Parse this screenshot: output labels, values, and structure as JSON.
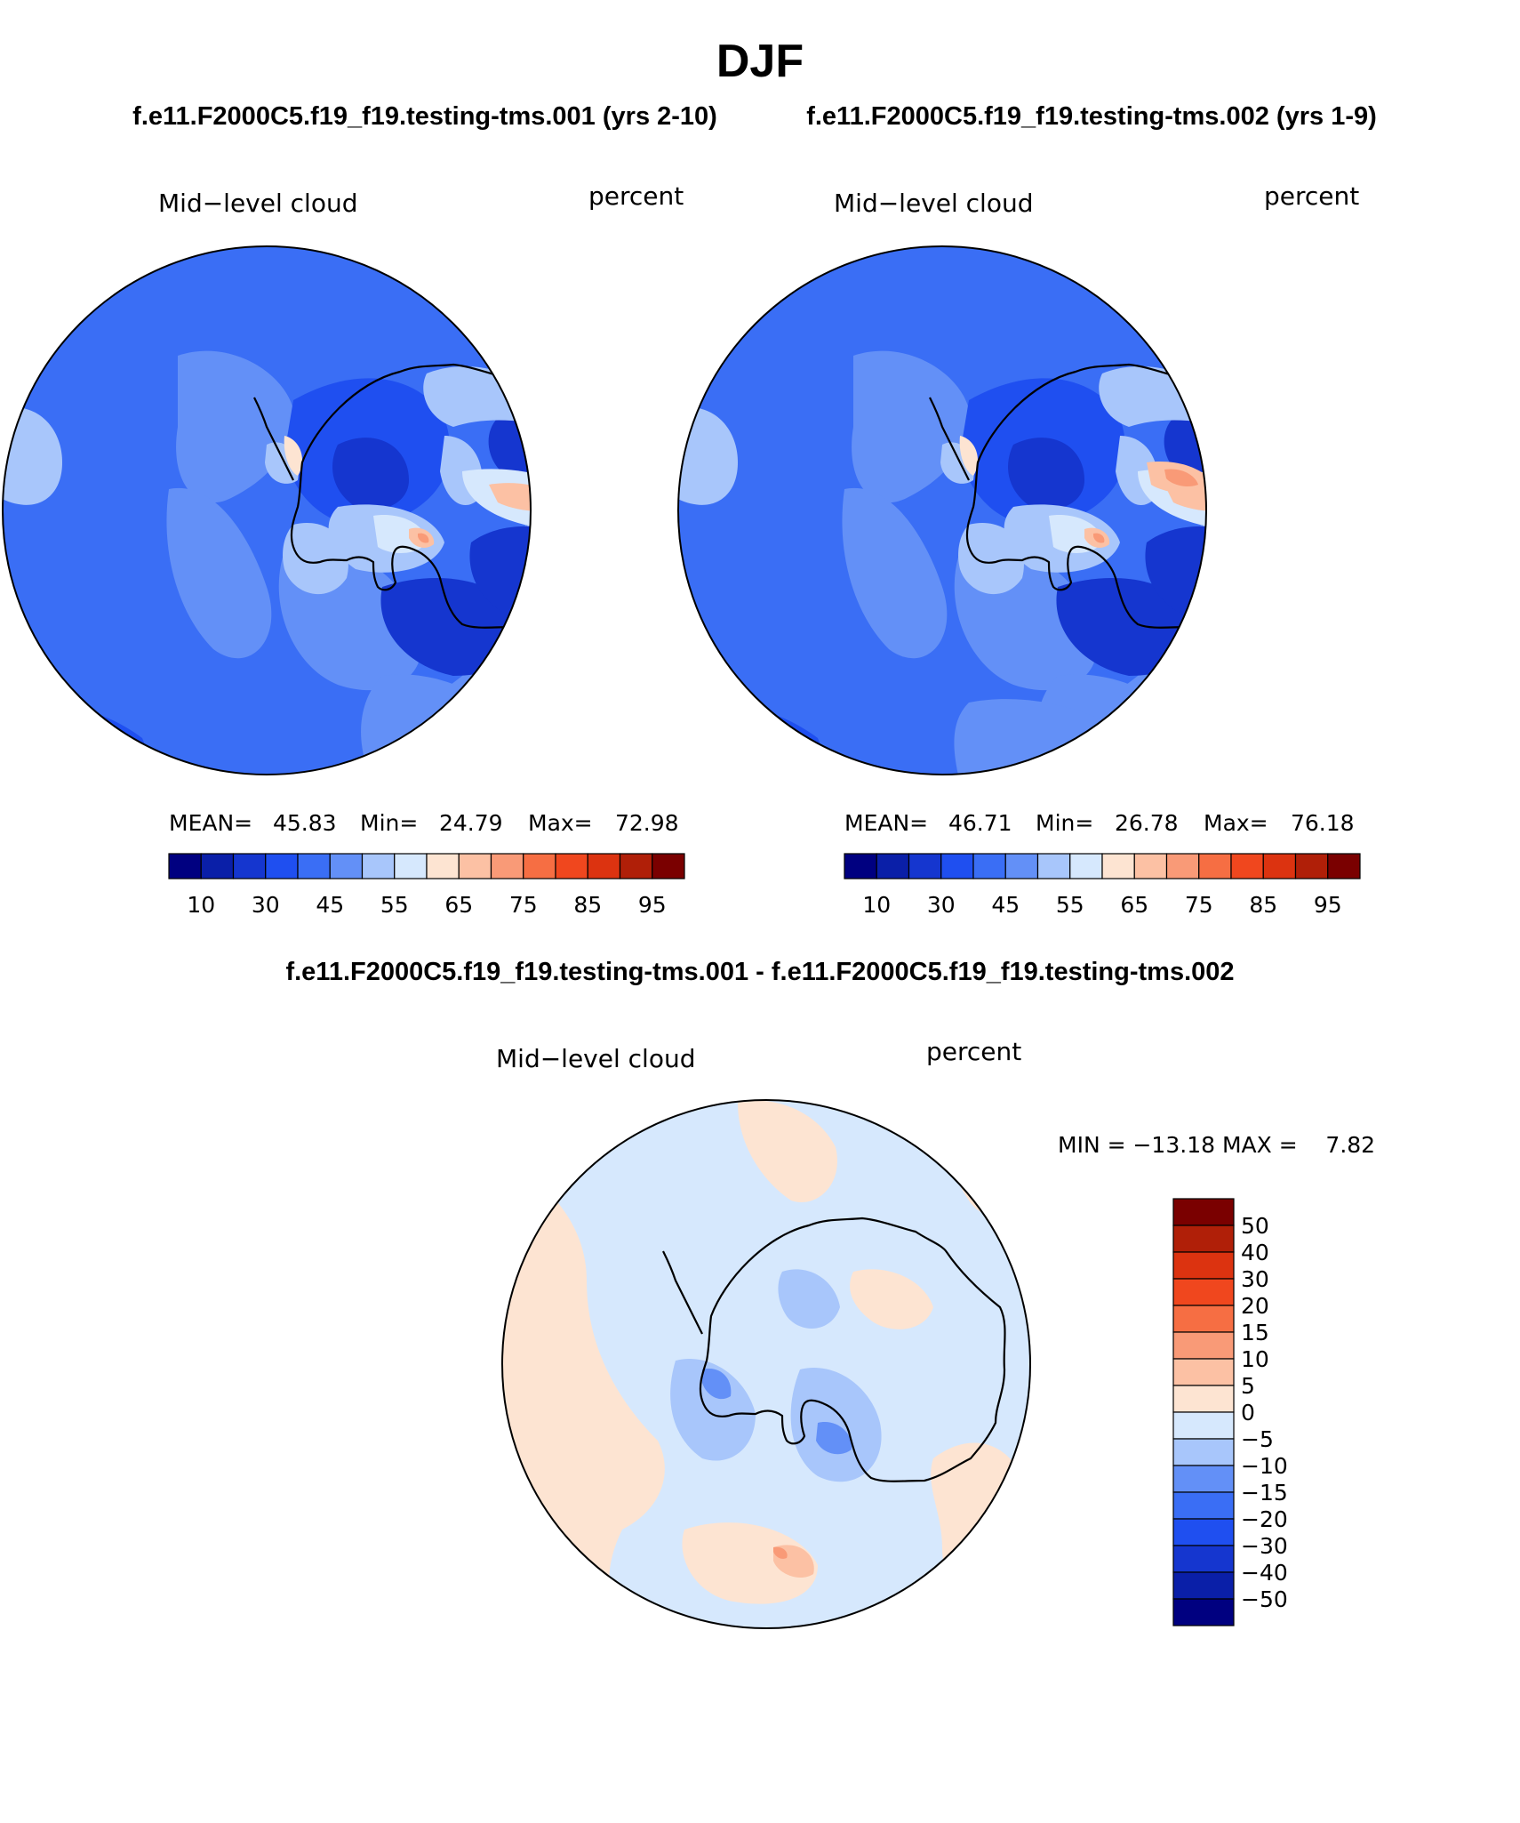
{
  "page": {
    "title": "DJF",
    "subtitle_left": "f.e11.F2000C5.f19_f19.testing-tms.001 (yrs 2-10)",
    "subtitle_right": "f.e11.F2000C5.f19_f19.testing-tms.002 (yrs 1-9)",
    "diff_title": "f.e11.F2000C5.f19_f19.testing-tms.001 - f.e11.F2000C5.f19_f19.testing-tms.002"
  },
  "panels": [
    {
      "field": "Mid−level cloud",
      "units": "percent",
      "mean_label": "MEAN=",
      "mean": "45.83",
      "min_label": "Min=",
      "min": "24.79",
      "max_label": "Max=",
      "max": "72.98"
    },
    {
      "field": "Mid−level cloud",
      "units": "percent",
      "mean_label": "MEAN=",
      "mean": "46.71",
      "min_label": "Min=",
      "min": "26.78",
      "max_label": "Max=",
      "max": "76.18"
    }
  ],
  "diff_panel": {
    "field": "Mid−level cloud",
    "units": "percent",
    "minmax": "MIN = −13.18 MAX =    7.82"
  },
  "colorbar": {
    "colors": [
      "#000080",
      "#0a1fa8",
      "#1536cf",
      "#1f4ff0",
      "#3a6ef5",
      "#6390f7",
      "#a8c6fb",
      "#d6e8fd",
      "#fde4d2",
      "#fcc1a4",
      "#f99a77",
      "#f66e43",
      "#f0471e",
      "#dc3310",
      "#b01f08",
      "#7a0000"
    ],
    "tick_labels": [
      "10",
      "30",
      "45",
      "55",
      "65",
      "75",
      "85",
      "95"
    ]
  },
  "diff_colorbar": {
    "colors": [
      "#000080",
      "#0a1fa8",
      "#1536cf",
      "#1f4ff0",
      "#3a6ef5",
      "#6390f7",
      "#a8c6fb",
      "#d6e8fd",
      "#fde4d2",
      "#fcc1a4",
      "#f99a77",
      "#f66e43",
      "#f0471e",
      "#dc3310",
      "#b01f08",
      "#7a0000"
    ],
    "labels": [
      "50",
      "40",
      "30",
      "20",
      "15",
      "10",
      "5",
      "0",
      "−5",
      "−10",
      "−15",
      "−20",
      "−30",
      "−40",
      "−50"
    ]
  }
}
